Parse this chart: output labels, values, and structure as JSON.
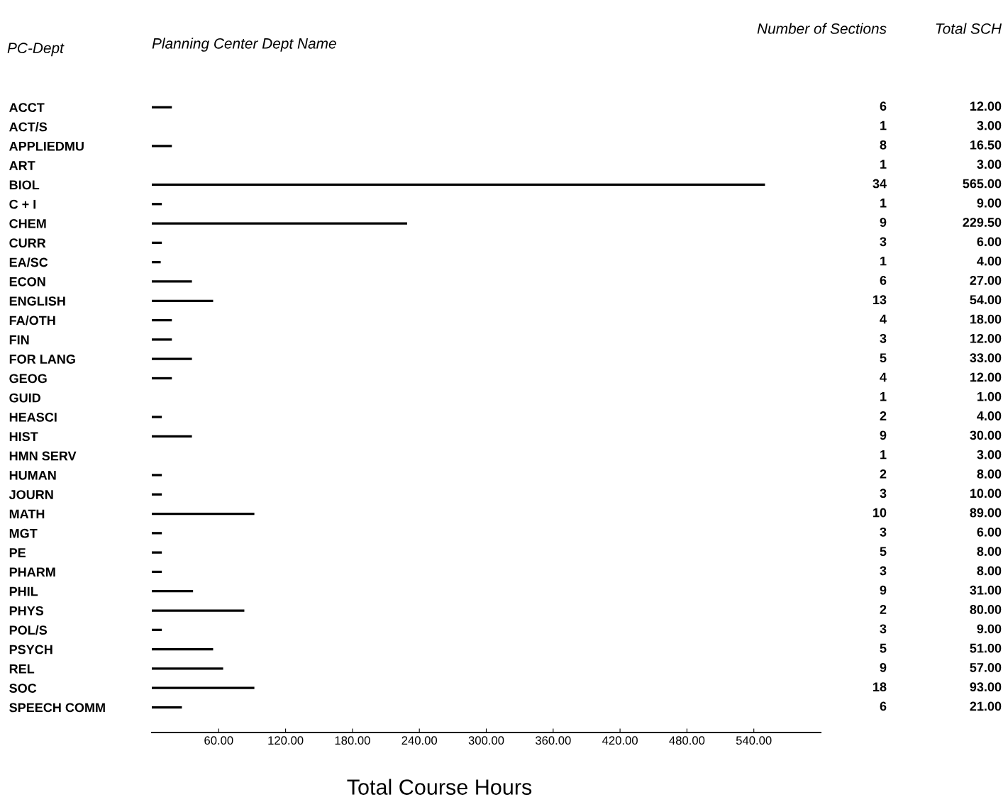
{
  "chart_data": [
    {
      "type": "bar",
      "orientation": "horizontal",
      "title": "Planning Center Dept Name",
      "ylabel": "PC-Dept",
      "xlabel": "Total Course Hours",
      "categories": [
        "ACCT",
        "ACT/S",
        "APPLIEDMU",
        "ART",
        "BIOL",
        "C + I",
        "CHEM",
        "CURR",
        "EA/SC",
        "ECON",
        "ENGLISH",
        "FA/OTH",
        "FIN",
        "FOR LANG",
        "GEOG",
        "GUID",
        "HEASCI",
        "HIST",
        "HMN SERV",
        "HUMAN",
        "JOURN",
        "MATH",
        "MGT",
        "PE",
        "PHARM",
        "PHIL",
        "PHYS",
        "POL/S",
        "PSYCH",
        "REL",
        "SOC",
        "SPEECH COMM"
      ],
      "values": [
        18,
        0,
        18,
        0,
        550,
        9,
        229,
        9,
        8,
        36,
        55,
        18,
        18,
        36,
        18,
        0,
        9,
        36,
        0,
        9,
        9,
        92,
        9,
        9,
        9,
        37,
        83,
        9,
        55,
        64,
        92,
        27
      ],
      "color": "#000000",
      "xlim": [
        0,
        600
      ],
      "xticks": [
        {
          "value": 60,
          "label": "60.00"
        },
        {
          "value": 120,
          "label": "120.00"
        },
        {
          "value": 180,
          "label": "180.00"
        },
        {
          "value": 240,
          "label": "240.00"
        },
        {
          "value": 300,
          "label": "300.00"
        },
        {
          "value": 360,
          "label": "360.00"
        },
        {
          "value": 420,
          "label": "420.00"
        },
        {
          "value": 480,
          "label": "480.00"
        },
        {
          "value": 540,
          "label": "540.00"
        }
      ],
      "grid": false,
      "legend": false
    },
    {
      "type": "other",
      "title": "Number of Sections",
      "categories": [
        null,
        null,
        null,
        null,
        null,
        null,
        null,
        null,
        null,
        null,
        null,
        null,
        null,
        null,
        null,
        null,
        null,
        null,
        null,
        null,
        null,
        null,
        null,
        null,
        null,
        null,
        null,
        null,
        null,
        null,
        null,
        null
      ],
      "values": [
        6,
        1,
        8,
        1,
        34,
        1,
        9,
        3,
        1,
        6,
        13,
        4,
        3,
        5,
        4,
        1,
        2,
        9,
        1,
        2,
        3,
        10,
        3,
        5,
        3,
        9,
        2,
        3,
        5,
        9,
        18,
        6
      ],
      "value_labels": [
        "6",
        "1",
        "8",
        "1",
        "34",
        "1",
        "9",
        "3",
        "1",
        "6",
        "13",
        "4",
        "3",
        "5",
        "4",
        "1",
        "2",
        "9",
        "1",
        "2",
        "3",
        "10",
        "3",
        "5",
        "3",
        "9",
        "2",
        "3",
        "5",
        "9",
        "18",
        "6"
      ]
    },
    {
      "type": "other",
      "title": "Total SCH",
      "categories": [
        null,
        null,
        null,
        null,
        null,
        null,
        null,
        null,
        null,
        null,
        null,
        null,
        null,
        null,
        null,
        null,
        null,
        null,
        null,
        null,
        null,
        null,
        null,
        null,
        null,
        null,
        null,
        null,
        null,
        null,
        null,
        null
      ],
      "values": [
        12,
        3,
        16.5,
        3,
        565,
        9,
        229.5,
        6,
        4,
        27,
        54,
        18,
        12,
        33,
        12,
        1,
        4,
        30,
        3,
        8,
        10,
        89,
        6,
        8,
        8,
        31,
        80,
        9,
        51,
        57,
        93,
        21
      ],
      "value_labels": [
        "12.00",
        "3.00",
        "16.50",
        "3.00",
        "565.00",
        "9.00",
        "229.50",
        "6.00",
        "4.00",
        "27.00",
        "54.00",
        "18.00",
        "12.00",
        "33.00",
        "12.00",
        "1.00",
        "4.00",
        "30.00",
        "3.00",
        "8.00",
        "10.00",
        "89.00",
        "6.00",
        "8.00",
        "8.00",
        "31.00",
        "80.00",
        "9.00",
        "51.00",
        "57.00",
        "93.00",
        "21.00"
      ]
    }
  ]
}
